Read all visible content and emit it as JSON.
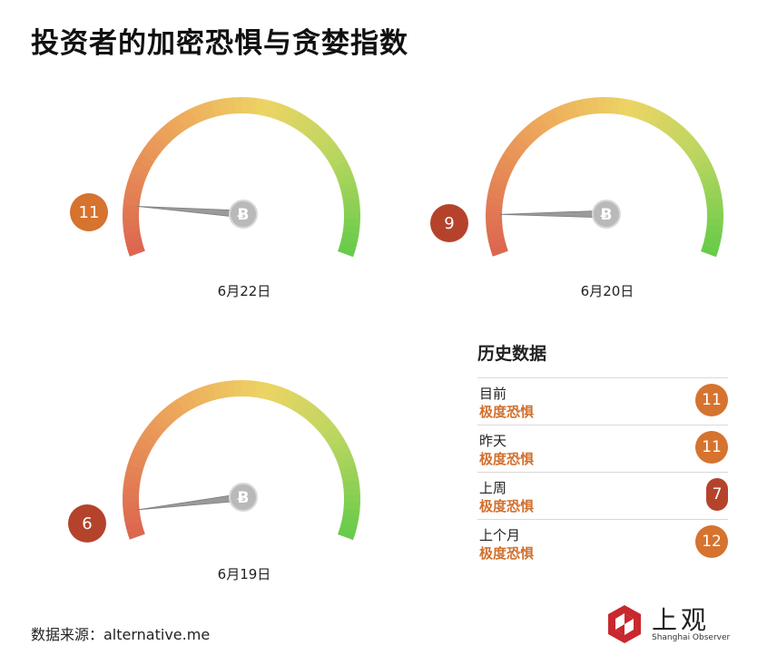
{
  "title": "投资者的加密恐惧与贪婪指数",
  "chart_data": [
    {
      "type": "gauge",
      "date_label": "6月22日",
      "value": 11,
      "badge_color": "#d5732f"
    },
    {
      "type": "gauge",
      "date_label": "6月20日",
      "value": 9,
      "badge_color": "#b5432c"
    },
    {
      "type": "gauge",
      "date_label": "6月19日",
      "value": 6,
      "badge_color": "#b5432c"
    }
  ],
  "history": {
    "title": "历史数据",
    "rows": [
      {
        "period": "目前",
        "state": "极度恐惧",
        "value": "11",
        "color": "#d5732f"
      },
      {
        "period": "昨天",
        "state": "极度恐惧",
        "value": "11",
        "color": "#d5732f"
      },
      {
        "period": "上周",
        "state": "极度恐惧",
        "value": "7",
        "color": "#b5432c"
      },
      {
        "period": "上个月",
        "state": "极度恐惧",
        "value": "12",
        "color": "#d5732f"
      }
    ]
  },
  "source": "数据来源：alternative.me",
  "logo": {
    "cn": "上观",
    "en": "Shanghai Observer"
  },
  "icons": {
    "gauge_hub": "bitcoin-icon",
    "brand": "shanghai-observer-logo-icon"
  }
}
